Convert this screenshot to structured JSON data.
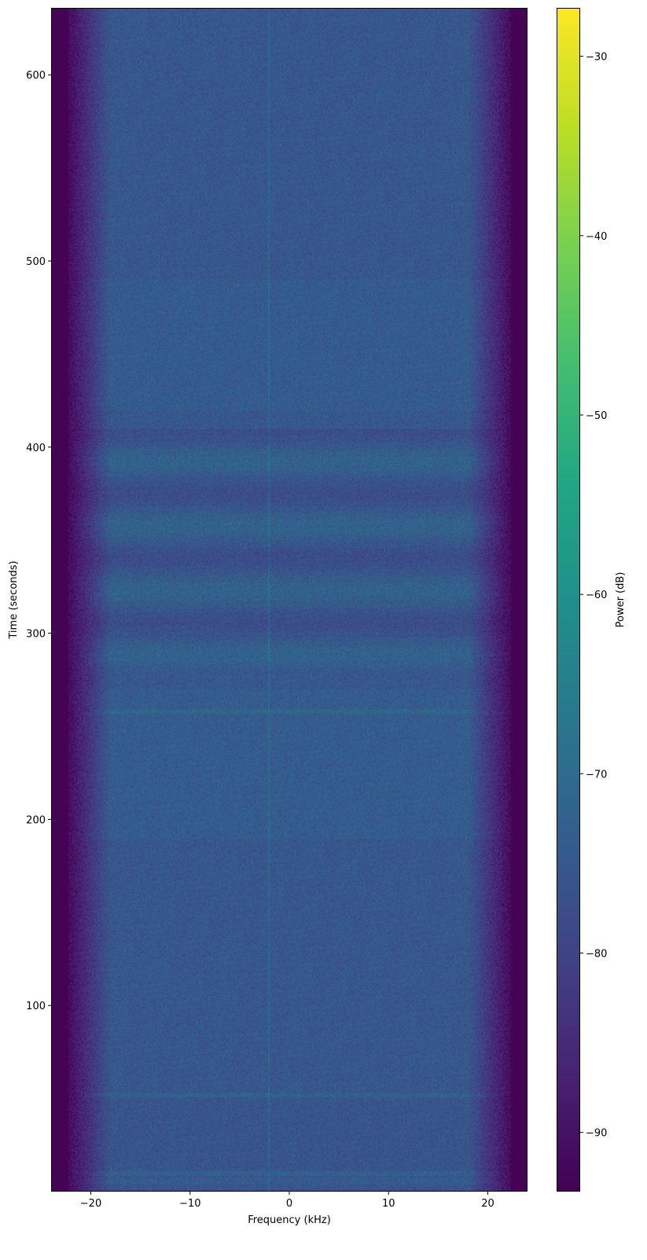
{
  "chart_data": {
    "type": "heatmap",
    "title": "",
    "xlabel": "Frequency (kHz)",
    "ylabel": "Time (seconds)",
    "xlim": [
      -24,
      24
    ],
    "ylim": [
      0,
      636
    ],
    "xticks": [
      -20,
      -10,
      0,
      10,
      20
    ],
    "xtick_labels": [
      "−20",
      "−10",
      "0",
      "10",
      "20"
    ],
    "yticks": [
      100,
      200,
      300,
      400,
      500,
      600
    ],
    "ytick_labels": [
      "100",
      "200",
      "300",
      "400",
      "500",
      "600"
    ],
    "colormap": "viridis",
    "colorbar": {
      "label": "Power (dB)",
      "range": [
        -93.3,
        -27.3
      ],
      "ticks": [
        -30,
        -40,
        -50,
        -60,
        -70,
        -80,
        -90
      ],
      "tick_labels": [
        "−30",
        "−40",
        "−50",
        "−60",
        "−70",
        "−80",
        "−90"
      ]
    },
    "noise_floor_db": -75,
    "band_edge_floor_db": -93,
    "passband_khz": [
      -22,
      22
    ],
    "tone_line_khz": -2.1,
    "banded_region_s": [
      280,
      410
    ],
    "horizontal_lines_s": [
      10,
      52,
      258
    ]
  }
}
